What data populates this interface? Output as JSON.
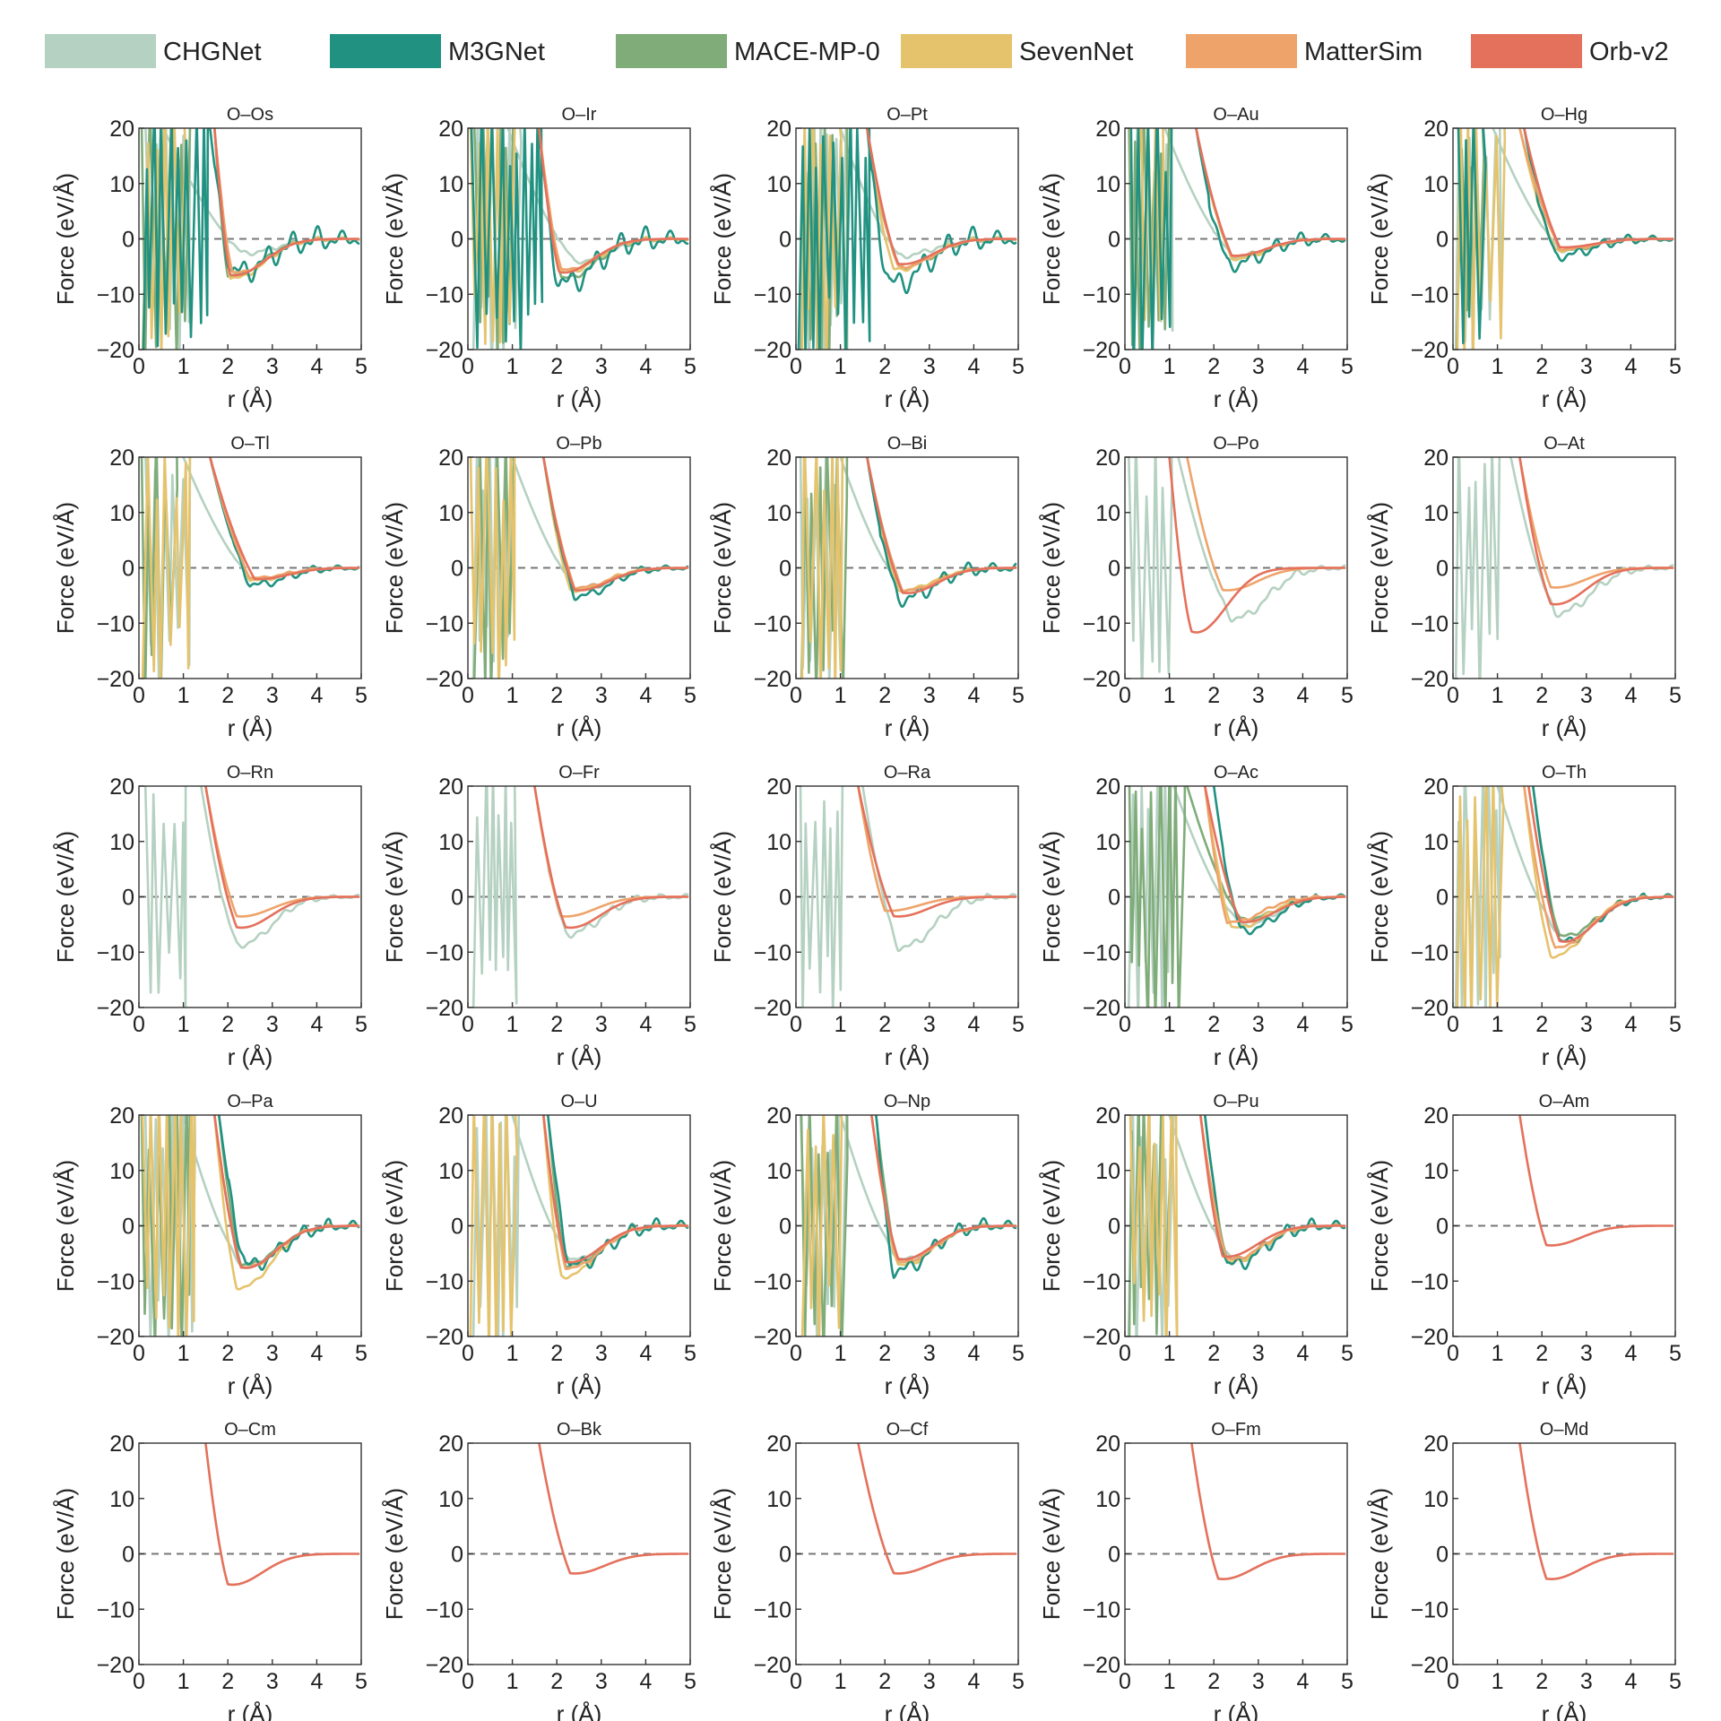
{
  "chart_data": {
    "type": "line",
    "layout": "grid 5x5 of small multiples",
    "xlabel": "r (Å)",
    "ylabel": "Force (eV/Å)",
    "xlim": [
      0,
      5
    ],
    "ylim": [
      -20,
      20
    ],
    "xticks": [
      0,
      1,
      2,
      3,
      4,
      5
    ],
    "yticks": [
      20,
      10,
      0,
      -10,
      -20
    ],
    "ytick_labels": [
      "20",
      "10",
      "0",
      "−10",
      "−20"
    ],
    "reference_line": {
      "y": 0,
      "style": "dashed"
    },
    "legend": {
      "placement": "top",
      "entries": [
        {
          "name": "CHGNet",
          "color": "#b5d1c1"
        },
        {
          "name": "M3GNet",
          "color": "#219281"
        },
        {
          "name": "MACE-MP-0",
          "color": "#7fac79"
        },
        {
          "name": "SevenNet",
          "color": "#e5c36d"
        },
        {
          "name": "MatterSim",
          "color": "#eea36a"
        },
        {
          "name": "Orb-v2",
          "color": "#e4715c"
        }
      ]
    },
    "panels": [
      {
        "title": "O–Os",
        "series": {
          "CHGNet": {
            "wall": 0.55,
            "depth": 2.5,
            "r_min": 2.3,
            "noise": 0.5,
            "unstable_until": 1.1
          },
          "M3GNet": {
            "wall": 1.6,
            "depth": 6,
            "r_min": 2.1,
            "noise": 2.5,
            "unstable_until": 1.5
          },
          "MACE-MP-0": {
            "wall": 1.7,
            "depth": 6.5,
            "r_min": 2.0,
            "noise": 0.3,
            "unstable_until": 1.1
          },
          "SevenNet": {
            "wall": 1.7,
            "depth": 7,
            "r_min": 2.05,
            "noise": 0.4,
            "unstable_until": 0.95
          },
          "MatterSim": {
            "wall": 1.7,
            "depth": 6,
            "r_min": 2.1,
            "noise": 0.2
          },
          "Orb-v2": {
            "wall": 1.7,
            "depth": 6.5,
            "r_min": 2.05,
            "noise": 0
          }
        }
      },
      {
        "title": "O–Ir",
        "series": {
          "CHGNet": {
            "wall": 0.9,
            "depth": 4,
            "r_min": 2.4,
            "noise": 0.4,
            "unstable_until": 1.1
          },
          "M3GNet": {
            "wall": 1.6,
            "depth": 8,
            "r_min": 2.05,
            "noise": 2.5,
            "unstable_until": 1.6
          },
          "MACE-MP-0": {
            "wall": 1.6,
            "depth": 7,
            "r_min": 2.1,
            "noise": 0.5,
            "unstable_until": 1.0
          },
          "SevenNet": {
            "wall": 1.6,
            "depth": 6,
            "r_min": 2.1,
            "noise": 0.4,
            "unstable_until": 1.0
          },
          "MatterSim": {
            "wall": 1.6,
            "depth": 5.5,
            "r_min": 2.1,
            "noise": 0.2
          },
          "Orb-v2": {
            "wall": 1.6,
            "depth": 6,
            "r_min": 2.05,
            "noise": 0
          }
        }
      },
      {
        "title": "O–Pt",
        "series": {
          "CHGNet": {
            "wall": 1.0,
            "depth": 3,
            "r_min": 2.3,
            "noise": 0.5,
            "unstable_until": 1.1
          },
          "M3GNet": {
            "wall": 1.6,
            "depth": 8,
            "r_min": 2.1,
            "noise": 2.5,
            "unstable_until": 1.6
          },
          "MACE-MP-0": {
            "wall": 1.6,
            "depth": 5,
            "r_min": 2.3,
            "noise": 0.5,
            "unstable_until": 1.1
          },
          "SevenNet": {
            "wall": 1.6,
            "depth": 5.5,
            "r_min": 2.2,
            "noise": 0.4,
            "unstable_until": 0.9
          },
          "MatterSim": {
            "wall": 1.6,
            "depth": 5,
            "r_min": 2.3,
            "noise": 0.2
          },
          "Orb-v2": {
            "wall": 1.6,
            "depth": 4.5,
            "r_min": 2.3,
            "noise": 0
          }
        }
      },
      {
        "title": "O–Au",
        "series": {
          "CHGNet": {
            "wall": 0.9,
            "depth": 3,
            "r_min": 2.4,
            "noise": 0.4,
            "unstable_until": 1.0
          },
          "M3GNet": {
            "wall": 1.6,
            "depth": 4.5,
            "r_min": 2.3,
            "noise": 1.5,
            "unstable_until": 1.0
          },
          "MACE-MP-0": {
            "wall": 1.6,
            "depth": 3.5,
            "r_min": 2.4,
            "noise": 0.3,
            "unstable_until": 1.0
          },
          "SevenNet": {
            "wall": 1.6,
            "depth": 3.5,
            "r_min": 2.4,
            "noise": 0.3,
            "unstable_until": 0.8
          },
          "MatterSim": {
            "wall": 1.6,
            "depth": 3,
            "r_min": 2.4,
            "noise": 0.2
          },
          "Orb-v2": {
            "wall": 1.6,
            "depth": 3,
            "r_min": 2.4,
            "noise": 0
          }
        }
      },
      {
        "title": "O–Hg",
        "series": {
          "CHGNet": {
            "wall": 0.9,
            "depth": 2,
            "r_min": 2.4,
            "noise": 0.4,
            "unstable_until": 1.0
          },
          "M3GNet": {
            "wall": 1.6,
            "depth": 3,
            "r_min": 2.3,
            "noise": 1.0,
            "unstable_until": 0.6
          },
          "MACE-MP-0": {
            "wall": 1.6,
            "depth": 2,
            "r_min": 2.4,
            "noise": 0.3,
            "unstable_until": 0.6
          },
          "SevenNet": {
            "wall": 1.5,
            "depth": 2,
            "r_min": 2.3,
            "noise": 0.3,
            "unstable_until": 1.1
          },
          "MatterSim": {
            "wall": 1.5,
            "depth": 1.8,
            "r_min": 2.4,
            "noise": 0.2
          },
          "Orb-v2": {
            "wall": 1.6,
            "depth": 1.5,
            "r_min": 2.4,
            "noise": 0
          }
        }
      },
      {
        "title": "O–Tl",
        "series": {
          "CHGNet": {
            "wall": 1.0,
            "depth": 2,
            "r_min": 2.5,
            "noise": 0.4,
            "unstable_until": 1.1
          },
          "M3GNet": {
            "wall": 1.6,
            "depth": 3,
            "r_min": 2.5,
            "noise": 0.8
          },
          "MACE-MP-0": {
            "wall": 1.6,
            "depth": 2,
            "r_min": 2.5,
            "noise": 0.3,
            "unstable_until": 0.8
          },
          "SevenNet": {
            "wall": 1.6,
            "depth": 2.2,
            "r_min": 2.5,
            "noise": 0.3,
            "unstable_until": 1.1
          },
          "MatterSim": {
            "wall": 1.6,
            "depth": 1.8,
            "r_min": 2.5,
            "noise": 0.2
          },
          "Orb-v2": {
            "wall": 1.6,
            "depth": 2,
            "r_min": 2.6,
            "noise": 0
          }
        }
      },
      {
        "title": "O–Pb",
        "series": {
          "CHGNet": {
            "wall": 1.0,
            "depth": 3.5,
            "r_min": 2.4,
            "noise": 0.4,
            "unstable_until": 0.9
          },
          "M3GNet": {
            "wall": 1.7,
            "depth": 5,
            "r_min": 2.4,
            "noise": 0.8
          },
          "MACE-MP-0": {
            "wall": 1.7,
            "depth": 4,
            "r_min": 2.4,
            "noise": 0.3,
            "unstable_until": 1.0
          },
          "SevenNet": {
            "wall": 1.7,
            "depth": 4,
            "r_min": 2.3,
            "noise": 0.3,
            "unstable_until": 1.0
          },
          "MatterSim": {
            "wall": 1.7,
            "depth": 3.5,
            "r_min": 2.4,
            "noise": 0.2
          },
          "Orb-v2": {
            "wall": 1.7,
            "depth": 4,
            "r_min": 2.4,
            "noise": 0
          }
        }
      },
      {
        "title": "O–Bi",
        "series": {
          "CHGNet": {
            "wall": 1.0,
            "depth": 4,
            "r_min": 2.4,
            "noise": 0.4,
            "unstable_until": 1.0
          },
          "M3GNet": {
            "wall": 1.6,
            "depth": 5.5,
            "r_min": 2.3,
            "noise": 1.5
          },
          "MACE-MP-0": {
            "wall": 1.6,
            "depth": 4,
            "r_min": 2.4,
            "noise": 0.3,
            "unstable_until": 1.1
          },
          "SevenNet": {
            "wall": 1.6,
            "depth": 4,
            "r_min": 2.3,
            "noise": 0.3,
            "unstable_until": 1.0
          },
          "MatterSim": {
            "wall": 1.6,
            "depth": 4,
            "r_min": 2.4,
            "noise": 0.2
          },
          "Orb-v2": {
            "wall": 1.6,
            "depth": 4.5,
            "r_min": 2.4,
            "noise": 0
          }
        }
      },
      {
        "title": "O–Po",
        "series": {
          "CHGNet": {
            "wall": 1.2,
            "depth": 9,
            "r_min": 2.4,
            "noise": 0.8,
            "unstable_until": 1.0
          },
          "MatterSim": {
            "wall": 1.4,
            "depth": 4,
            "r_min": 2.2,
            "noise": 0
          },
          "Orb-v2": {
            "wall": 1.0,
            "depth": 11.5,
            "r_min": 1.5,
            "noise": 0
          }
        }
      },
      {
        "title": "O–At",
        "series": {
          "CHGNet": {
            "wall": 1.3,
            "depth": 8,
            "r_min": 2.3,
            "noise": 0.8,
            "unstable_until": 1.0
          },
          "MatterSim": {
            "wall": 1.5,
            "depth": 3.5,
            "r_min": 2.2,
            "noise": 0
          },
          "Orb-v2": {
            "wall": 1.5,
            "depth": 6.5,
            "r_min": 2.2,
            "noise": 0
          }
        }
      },
      {
        "title": "O–Rn",
        "series": {
          "CHGNet": {
            "wall": 1.4,
            "depth": 8.5,
            "r_min": 2.2,
            "noise": 0.6,
            "unstable_until": 1.0
          },
          "MatterSim": {
            "wall": 1.5,
            "depth": 3.5,
            "r_min": 2.2,
            "noise": 0
          },
          "Orb-v2": {
            "wall": 1.5,
            "depth": 5.5,
            "r_min": 2.2,
            "noise": 0
          }
        }
      },
      {
        "title": "O–Fr",
        "series": {
          "CHGNet": {
            "wall": 1.5,
            "depth": 6.5,
            "r_min": 2.2,
            "noise": 0.8,
            "unstable_until": 1.0
          },
          "MatterSim": {
            "wall": 1.5,
            "depth": 3.5,
            "r_min": 2.1,
            "noise": 0
          },
          "Orb-v2": {
            "wall": 1.5,
            "depth": 5.5,
            "r_min": 2.2,
            "noise": 0
          }
        }
      },
      {
        "title": "O–Ra",
        "series": {
          "CHGNet": {
            "wall": 1.5,
            "depth": 9,
            "r_min": 2.3,
            "noise": 0.8,
            "unstable_until": 1.0
          },
          "MatterSim": {
            "wall": 1.4,
            "depth": 2.5,
            "r_min": 2.0,
            "noise": 0
          },
          "Orb-v2": {
            "wall": 1.4,
            "depth": 3.5,
            "r_min": 2.2,
            "noise": 0
          }
        }
      },
      {
        "title": "O–Ac",
        "series": {
          "CHGNet": {
            "wall": 1.1,
            "depth": 5,
            "r_min": 2.6,
            "noise": 0.4,
            "unstable_until": 1.0
          },
          "M3GNet": {
            "wall": 2.0,
            "depth": 6,
            "r_min": 2.6,
            "noise": 0.8
          },
          "MACE-MP-0": {
            "wall": 1.4,
            "depth": 4,
            "r_min": 2.6,
            "noise": 0.3,
            "unstable_until": 1.3
          },
          "SevenNet": {
            "wall": 1.8,
            "depth": 5.5,
            "r_min": 2.4,
            "noise": 0.4
          },
          "MatterSim": {
            "wall": 1.8,
            "depth": 4.5,
            "r_min": 2.3,
            "noise": 0.3
          },
          "Orb-v2": {
            "wall": 1.8,
            "depth": 4.5,
            "r_min": 2.6,
            "noise": 0
          }
        }
      },
      {
        "title": "O–Th",
        "series": {
          "CHGNet": {
            "wall": 1.0,
            "depth": 7,
            "r_min": 2.4,
            "noise": 0.4,
            "unstable_until": 1.0
          },
          "M3GNet": {
            "wall": 1.8,
            "depth": 8,
            "r_min": 2.4,
            "noise": 0.8
          },
          "MACE-MP-0": {
            "wall": 1.8,
            "depth": 7,
            "r_min": 2.4,
            "noise": 0.4
          },
          "SevenNet": {
            "wall": 1.6,
            "depth": 10.5,
            "r_min": 2.2,
            "noise": 0.4,
            "unstable_until": 1.0
          },
          "MatterSim": {
            "wall": 1.6,
            "depth": 9,
            "r_min": 2.3,
            "noise": 0.3
          },
          "Orb-v2": {
            "wall": 1.7,
            "depth": 8,
            "r_min": 2.4,
            "noise": 0
          }
        }
      },
      {
        "title": "O–Pa",
        "series": {
          "CHGNet": {
            "wall": 1.0,
            "depth": 7,
            "r_min": 2.3,
            "noise": 0.4,
            "unstable_until": 1.2
          },
          "M3GNet": {
            "wall": 1.8,
            "depth": 7,
            "r_min": 2.4,
            "noise": 1.5
          },
          "MACE-MP-0": {
            "wall": 1.8,
            "depth": 7,
            "r_min": 2.3,
            "noise": 0.4,
            "unstable_until": 1.1
          },
          "SevenNet": {
            "wall": 1.7,
            "depth": 11,
            "r_min": 2.2,
            "noise": 0.4,
            "unstable_until": 1.2
          },
          "MatterSim": {
            "wall": 1.7,
            "depth": 7.5,
            "r_min": 2.3,
            "noise": 0.3
          },
          "Orb-v2": {
            "wall": 1.7,
            "depth": 7.5,
            "r_min": 2.3,
            "noise": 0
          }
        }
      },
      {
        "title": "O–U",
        "series": {
          "CHGNet": {
            "wall": 1.0,
            "depth": 6,
            "r_min": 2.3,
            "noise": 0.4,
            "unstable_until": 1.1
          },
          "M3GNet": {
            "wall": 1.8,
            "depth": 7,
            "r_min": 2.3,
            "noise": 1.5
          },
          "MACE-MP-0": {
            "wall": 1.8,
            "depth": 7,
            "r_min": 2.2,
            "noise": 0.4
          },
          "SevenNet": {
            "wall": 1.7,
            "depth": 9,
            "r_min": 2.1,
            "noise": 0.4,
            "unstable_until": 1.0
          },
          "MatterSim": {
            "wall": 1.7,
            "depth": 7.5,
            "r_min": 2.2,
            "noise": 0.3
          },
          "Orb-v2": {
            "wall": 1.7,
            "depth": 6.5,
            "r_min": 2.2,
            "noise": 0
          }
        }
      },
      {
        "title": "O–Np",
        "series": {
          "CHGNet": {
            "wall": 1.0,
            "depth": 6,
            "r_min": 2.3,
            "noise": 0.4,
            "unstable_until": 1.1
          },
          "M3GNet": {
            "wall": 1.8,
            "depth": 8,
            "r_min": 2.2,
            "noise": 1.5
          },
          "MACE-MP-0": {
            "wall": 1.8,
            "depth": 7,
            "r_min": 2.3,
            "noise": 0.4,
            "unstable_until": 1.1
          },
          "SevenNet": {
            "wall": 1.7,
            "depth": 7,
            "r_min": 2.3,
            "noise": 0.4,
            "unstable_until": 1.0
          },
          "MatterSim": {
            "wall": 1.7,
            "depth": 6.5,
            "r_min": 2.3,
            "noise": 0.3
          },
          "Orb-v2": {
            "wall": 1.7,
            "depth": 6,
            "r_min": 2.3,
            "noise": 0
          }
        }
      },
      {
        "title": "O–Pu",
        "series": {
          "CHGNet": {
            "wall": 1.0,
            "depth": 6,
            "r_min": 2.4,
            "noise": 0.6,
            "unstable_until": 1.0
          },
          "M3GNet": {
            "wall": 1.8,
            "depth": 7,
            "r_min": 2.3,
            "noise": 1.5
          },
          "MACE-MP-0": {
            "wall": 1.8,
            "depth": 6,
            "r_min": 2.3,
            "noise": 0.4,
            "unstable_until": 1.0
          },
          "SevenNet": {
            "wall": 1.7,
            "depth": 6.5,
            "r_min": 2.3,
            "noise": 0.4,
            "unstable_until": 1.1
          },
          "MatterSim": {
            "wall": 1.7,
            "depth": 6,
            "r_min": 2.3,
            "noise": 0.3
          },
          "Orb-v2": {
            "wall": 1.7,
            "depth": 5.5,
            "r_min": 2.2,
            "noise": 0
          }
        }
      },
      {
        "title": "O–Am",
        "series": {
          "Orb-v2": {
            "wall": 1.5,
            "depth": 3.5,
            "r_min": 2.1,
            "noise": 0
          }
        }
      },
      {
        "title": "O–Cm",
        "series": {
          "Orb-v2": {
            "wall": 1.5,
            "depth": 5.5,
            "r_min": 2.0,
            "noise": 0
          }
        }
      },
      {
        "title": "O–Bk",
        "series": {
          "Orb-v2": {
            "wall": 1.6,
            "depth": 3.5,
            "r_min": 2.3,
            "noise": 0
          }
        }
      },
      {
        "title": "O–Cf",
        "series": {
          "Orb-v2": {
            "wall": 1.4,
            "depth": 3.5,
            "r_min": 2.2,
            "noise": 0
          }
        }
      },
      {
        "title": "O–Fm",
        "series": {
          "Orb-v2": {
            "wall": 1.5,
            "depth": 4.5,
            "r_min": 2.1,
            "noise": 0
          }
        }
      },
      {
        "title": "O–Md",
        "series": {
          "Orb-v2": {
            "wall": 1.5,
            "depth": 4.5,
            "r_min": 2.1,
            "noise": 0
          }
        }
      }
    ]
  }
}
